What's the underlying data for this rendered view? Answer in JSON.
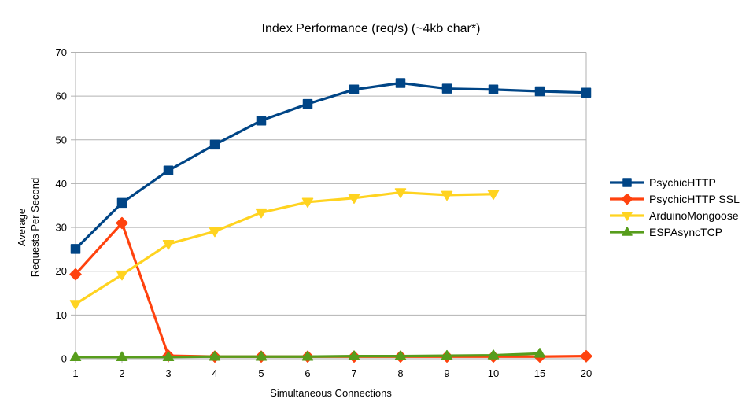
{
  "chart_data": {
    "type": "line",
    "title": "Index Performance (req/s) (~4kb char*)",
    "xlabel": "Simultaneous Connections",
    "ylabel_lines": [
      "Average",
      "Requests Per Second"
    ],
    "categories": [
      "1",
      "2",
      "3",
      "4",
      "5",
      "6",
      "7",
      "8",
      "9",
      "10",
      "15",
      "20"
    ],
    "ylim": [
      0,
      70
    ],
    "ytick_step": 10,
    "grid": "horizontal-only",
    "legend_position": "right",
    "background_color": "#ffffff",
    "axis_color": "#b2b2b2",
    "text_color": "#000000",
    "series": [
      {
        "name": "PsychicHTTP",
        "color": "#004586",
        "marker": "square",
        "values": [
          25.1,
          35.6,
          43.0,
          48.9,
          54.4,
          58.2,
          61.5,
          63.0,
          61.7,
          61.5,
          61.1,
          60.8
        ]
      },
      {
        "name": "PsychicHTTP SSL",
        "color": "#FF420E",
        "marker": "diamond",
        "values": [
          19.3,
          31.0,
          0.7,
          0.5,
          0.5,
          0.5,
          0.5,
          0.5,
          0.5,
          0.5,
          0.5,
          0.6
        ]
      },
      {
        "name": "ArduinoMongoose",
        "color": "#FFD320",
        "marker": "triangle-down",
        "values": [
          12.5,
          19.2,
          26.2,
          29.1,
          33.4,
          35.8,
          36.7,
          38.0,
          37.4,
          37.6,
          null,
          null
        ]
      },
      {
        "name": "ESPAsyncTCP",
        "color": "#579D1C",
        "marker": "triangle-up",
        "values": [
          0.4,
          0.4,
          0.4,
          0.5,
          0.5,
          0.5,
          0.6,
          0.6,
          0.7,
          0.8,
          1.2,
          null
        ]
      }
    ]
  }
}
